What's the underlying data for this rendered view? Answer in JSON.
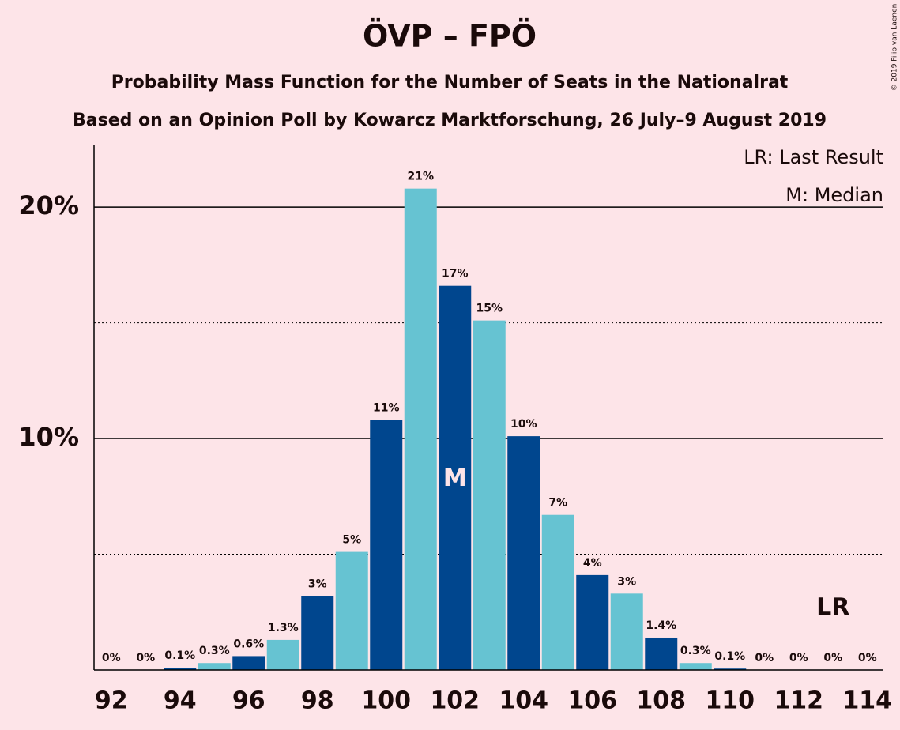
{
  "chart_data": {
    "type": "bar",
    "title": "ÖVP – FPÖ",
    "subtitle": "Probability Mass Function for the Number of Seats in the Nationalrat",
    "subtitle2": "Based on an Opinion Poll by Kowarcz Marktforschung, 26 July–9 August 2019",
    "copyright": "© 2019 Filip van Laenen",
    "legend": [
      "LR: Last Result",
      "M: Median"
    ],
    "legend_position": "top-right",
    "categories": [
      92,
      null,
      94,
      null,
      96,
      null,
      98,
      null,
      100,
      null,
      102,
      null,
      104,
      null,
      106,
      null,
      108,
      null,
      110,
      null,
      112,
      null,
      114
    ],
    "values": [
      0,
      0,
      0.1,
      0.3,
      0.6,
      1.3,
      3.2,
      5.1,
      10.8,
      20.8,
      16.6,
      15.1,
      10.1,
      6.7,
      4.1,
      3.3,
      1.4,
      0.3,
      0.06,
      0,
      0,
      0,
      0
    ],
    "value_labels": [
      "0%",
      "0%",
      "0.1%",
      "0.3%",
      "0.6%",
      "1.3%",
      "3%",
      "5%",
      "11%",
      "21%",
      "17%",
      "15%",
      "10%",
      "7%",
      "4%",
      "3%",
      "1.4%",
      "0.3%",
      "0.1%",
      "0%",
      "0%",
      "0%",
      "0%"
    ],
    "palette": [
      "#66c3d2",
      "#00468e"
    ],
    "markers": [
      {
        "label": "M",
        "index": 10
      },
      {
        "label": "LR",
        "index": 21
      }
    ],
    "ylim": [
      0,
      22.7
    ],
    "yticks": [
      {
        "value": 10,
        "label": "10%"
      },
      {
        "value": 20,
        "label": "20%"
      }
    ],
    "minor_yticks": [
      5,
      15
    ],
    "grid": true
  }
}
